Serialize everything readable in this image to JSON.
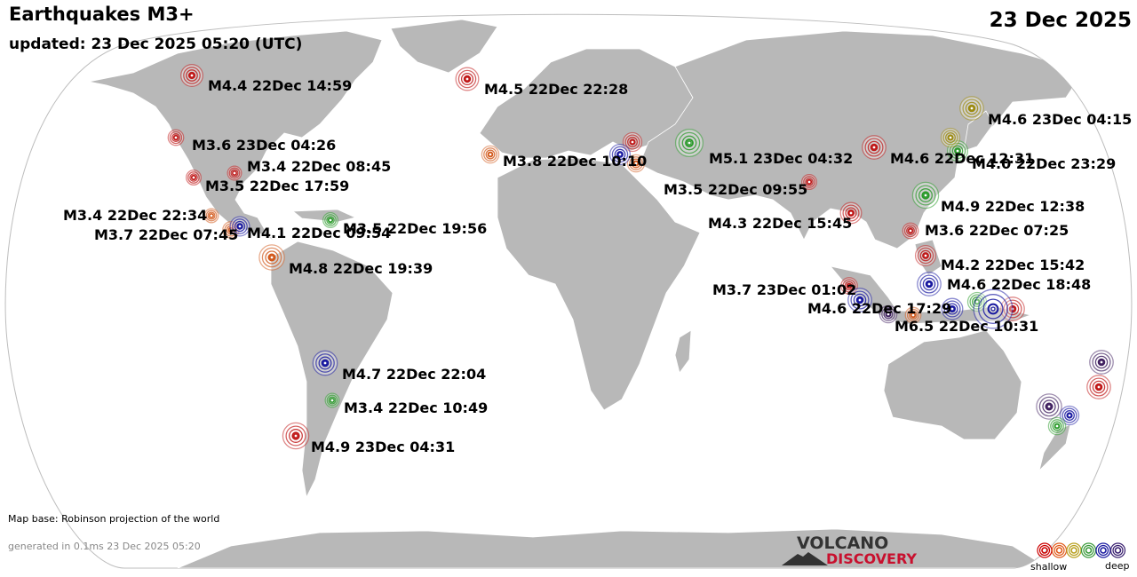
{
  "header": {
    "title": "Earthquakes M3+",
    "updated": "updated: 23 Dec 2025 05:20 (UTC)",
    "date": "23 Dec 2025"
  },
  "footer": {
    "map_base": "Map base: Robinson projection of the world",
    "generated": "generated in 0.1ms 23 Dec 2025 05:20"
  },
  "logo": {
    "word1": "VOLCANO",
    "word2": "DISCOVERY"
  },
  "legend": {
    "shallow_label": "shallow",
    "deep_label": "deep",
    "colors": [
      "#cc0000",
      "#e05a1a",
      "#b8a020",
      "#3a9a3a",
      "#1a1aa0",
      "#3a2070"
    ]
  },
  "depth_colors": {
    "red": "#c01818",
    "orange": "#d2581a",
    "olive": "#9c8a10",
    "green": "#2a9a2a",
    "blue": "#1818a0",
    "purple": "#402060"
  },
  "earthquakes": [
    {
      "label": "M4.4 22Dec 14:59",
      "mag": 4.4,
      "depth": "red"
    },
    {
      "label": "M4.5 22Dec 22:28",
      "mag": 4.5,
      "depth": "red"
    },
    {
      "label": "M3.6 23Dec 04:26",
      "mag": 3.6,
      "depth": "red"
    },
    {
      "label": "M3.4 22Dec 08:45",
      "mag": 3.4,
      "depth": "red"
    },
    {
      "label": "M3.5 22Dec 17:59",
      "mag": 3.5,
      "depth": "red"
    },
    {
      "label": "M3.4 22Dec 22:34",
      "mag": 3.4,
      "depth": "orange"
    },
    {
      "label": "M3.7 22Dec 07:45",
      "mag": 3.7,
      "depth": "orange"
    },
    {
      "label": "M4.1 22Dec 09:54",
      "mag": 4.1,
      "depth": "blue"
    },
    {
      "label": "M3.5 22Dec 19:56",
      "mag": 3.5,
      "depth": "green"
    },
    {
      "label": "M4.8 22Dec 19:39",
      "mag": 4.8,
      "depth": "orange"
    },
    {
      "label": "M3.8 22Dec 10:10",
      "mag": 3.8,
      "depth": "orange"
    },
    {
      "label": "M5.1 23Dec 04:32",
      "mag": 5.1,
      "depth": "green"
    },
    {
      "label": "M3.5 22Dec 09:55",
      "mag": 3.5,
      "depth": "red"
    },
    {
      "label": "M4.6 22Dec 12:31",
      "mag": 4.6,
      "depth": "red"
    },
    {
      "label": "M4.6 23Dec 04:15",
      "mag": 4.6,
      "depth": "olive"
    },
    {
      "label": "M4.0 22Dec 23:29",
      "mag": 4.0,
      "depth": "olive"
    },
    {
      "label": "M4.9 22Dec 12:38",
      "mag": 4.9,
      "depth": "green"
    },
    {
      "label": "M4.3 22Dec 15:45",
      "mag": 4.3,
      "depth": "red"
    },
    {
      "label": "M3.6 22Dec 07:25",
      "mag": 3.6,
      "depth": "red"
    },
    {
      "label": "M4.2 22Dec 15:42",
      "mag": 4.2,
      "depth": "red"
    },
    {
      "label": "M4.6 22Dec 18:48",
      "mag": 4.6,
      "depth": "blue"
    },
    {
      "label": "M3.7 23Dec 01:02",
      "mag": 3.7,
      "depth": "red"
    },
    {
      "label": "M4.6 22Dec 17:29",
      "mag": 4.6,
      "depth": "blue"
    },
    {
      "label": "M6.5 22Dec 10:31",
      "mag": 6.5,
      "depth": "blue"
    },
    {
      "label": "M4.7 22Dec 22:04",
      "mag": 4.7,
      "depth": "blue"
    },
    {
      "label": "M3.4 22Dec 10:49",
      "mag": 3.4,
      "depth": "green"
    },
    {
      "label": "M4.9 23Dec 04:31",
      "mag": 4.9,
      "depth": "red"
    }
  ]
}
